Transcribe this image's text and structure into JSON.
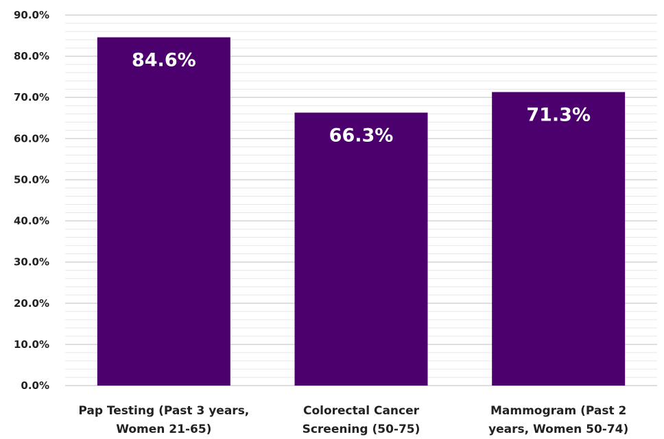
{
  "chart_data": {
    "type": "bar",
    "categories": [
      [
        "Pap Testing (Past 3 years,",
        "Women 21-65)"
      ],
      [
        "Colorectal Cancer",
        "Screening (50-75)"
      ],
      [
        "Mammogram (Past 2",
        "years, Women 50-74)"
      ]
    ],
    "values": [
      84.6,
      66.3,
      71.3
    ],
    "data_labels": [
      "84.6%",
      "66.3%",
      "71.3%"
    ],
    "ylim": [
      0,
      90
    ],
    "y_ticks": [
      0,
      10,
      20,
      30,
      40,
      50,
      60,
      70,
      80,
      90
    ],
    "y_tick_labels": [
      "0.0%",
      "10.0%",
      "20.0%",
      "30.0%",
      "40.0%",
      "50.0%",
      "60.0%",
      "70.0%",
      "80.0%",
      "90.0%"
    ],
    "title": "",
    "xlabel": "",
    "ylabel": "",
    "grid": true,
    "legend": "none",
    "bar_color": "#4b006e",
    "grid_color": "#d4d4d4"
  }
}
